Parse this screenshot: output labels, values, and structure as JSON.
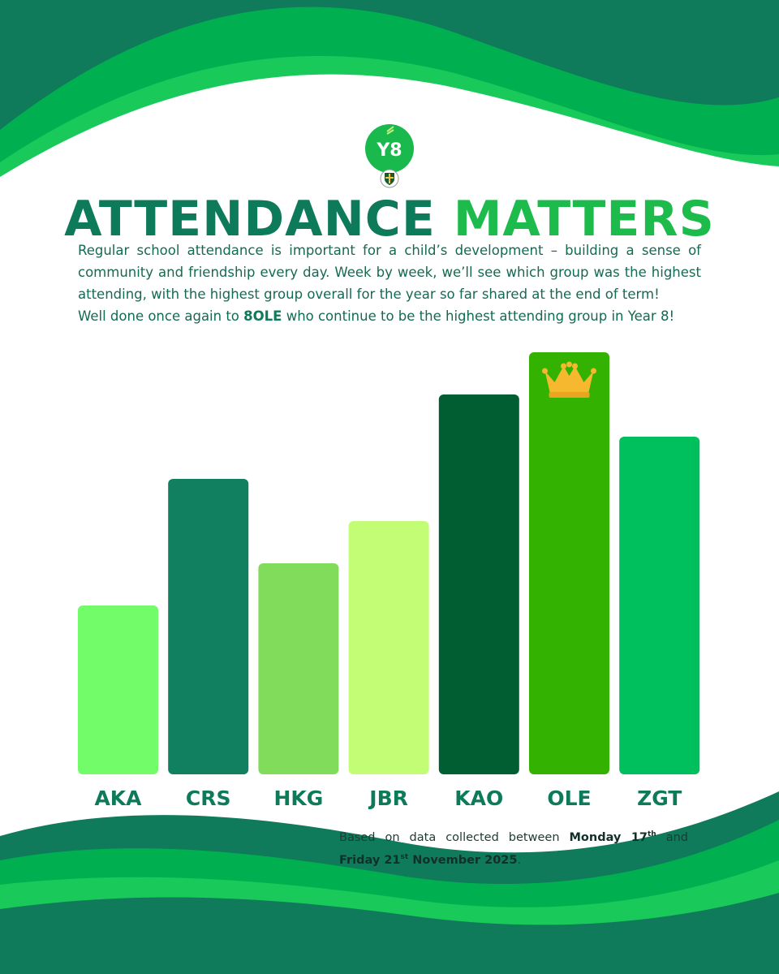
{
  "logo": {
    "text": "Y8",
    "icon": "school-crest-icon"
  },
  "heading": {
    "part1": "ATTENDANCE",
    "part2": "MATTERS"
  },
  "intro": {
    "paragraph1": "Regular school attendance is important for a child’s development – building a sense of community and friendship every day. Week by week, we’ll see which group was the highest attending, with the highest group overall for the year so far shared at the end of term!",
    "paragraph2_before": "Well done once again to ",
    "paragraph2_bold": "8OLE",
    "paragraph2_after": " who continue to be the highest attending group in Year 8!"
  },
  "chart_data": {
    "type": "bar",
    "categories": [
      "AKA",
      "CRS",
      "HKG",
      "JBR",
      "KAO",
      "OLE",
      "ZGT"
    ],
    "values": [
      40,
      70,
      50,
      60,
      90,
      100,
      80
    ],
    "ylim": [
      0,
      100
    ],
    "grid": false,
    "colors": [
      "#72fc6a",
      "#118060",
      "#82dc5c",
      "#c2fd75",
      "#015e32",
      "#34b201",
      "#00c05d"
    ],
    "highlight": {
      "category": "OLE",
      "icon": "crown-icon",
      "color": "#f5b82e"
    }
  },
  "footnote": {
    "before": "Based on data collected between ",
    "date1": "Monday 17",
    "date1_sup": "th",
    "middle": " and ",
    "date2": "Friday 21",
    "date2_sup": "st",
    "date2_rest": " November 2025",
    "end": "."
  },
  "colors": {
    "dark_green": "#0d7a59",
    "bright_green": "#1dbb4c",
    "wave_mid": "#00b050"
  }
}
